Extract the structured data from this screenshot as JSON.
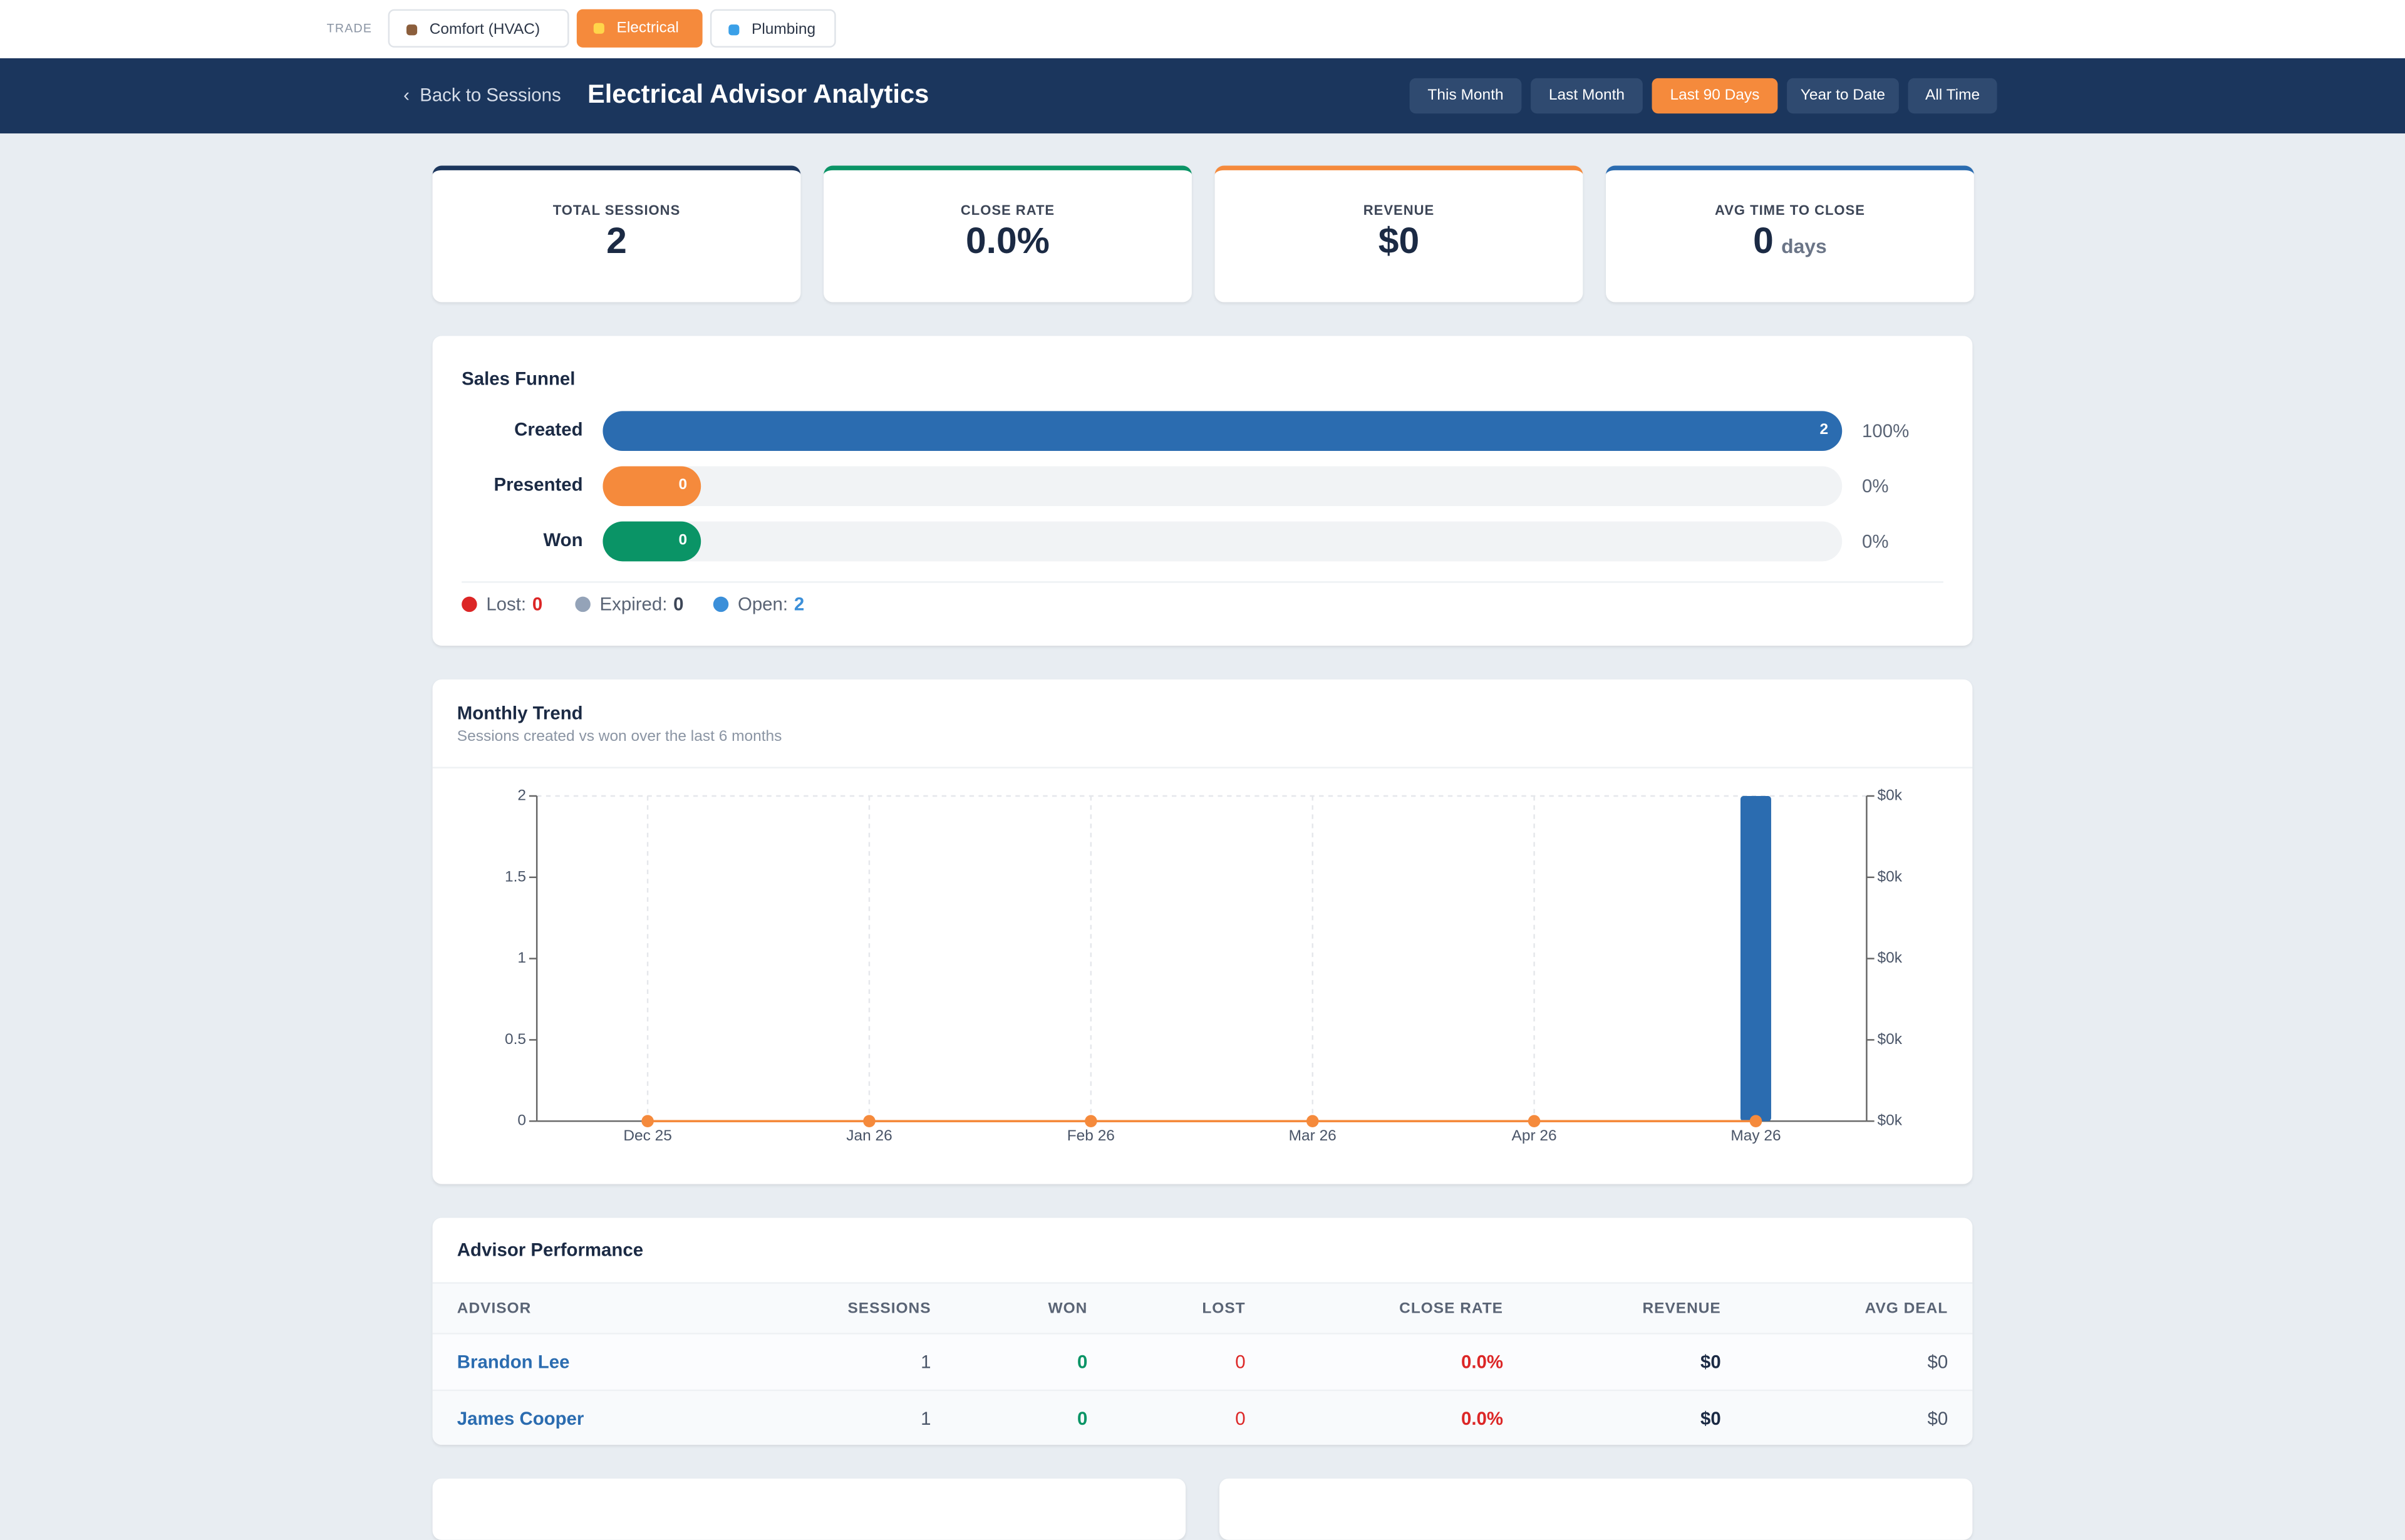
{
  "nav": {
    "trade_label": "TRADE",
    "trades": [
      "Comfort (HVAC)",
      "Electrical",
      "Plumbing"
    ],
    "active_trade": 1
  },
  "header": {
    "back": "Back to Sessions",
    "title": "Electrical Advisor Analytics",
    "ranges": [
      "This Month",
      "Last Month",
      "Last 90 Days",
      "Year to Date",
      "All Time"
    ],
    "active_range": 2
  },
  "kpis": [
    {
      "label": "TOTAL SESSIONS",
      "value": "2",
      "color": "#1b365d"
    },
    {
      "label": "CLOSE RATE",
      "value": "0.0%",
      "color": "#0a9466"
    },
    {
      "label": "REVENUE",
      "value": "$0",
      "color": "#f58a3c"
    },
    {
      "label": "AVG TIME TO CLOSE",
      "value": "0",
      "unit": "days",
      "color": "#2b6cb0"
    }
  ],
  "funnel": {
    "title": "Sales Funnel",
    "stages": [
      {
        "label": "Created",
        "value": 2,
        "pct": "100%",
        "color": "#2b6cb0"
      },
      {
        "label": "Presented",
        "value": 0,
        "pct": "0%",
        "color": "#f58a3c"
      },
      {
        "label": "Won",
        "value": 0,
        "pct": "0%",
        "color": "#0a9466"
      }
    ],
    "summary": [
      {
        "label": "Lost:",
        "value": 0,
        "color": "#dc2626"
      },
      {
        "label": "Expired:",
        "value": 0,
        "color": "#94a3b8"
      },
      {
        "label": "Open:",
        "value": 2,
        "color": "#3b8fd9"
      }
    ]
  },
  "chart_data": {
    "type": "bar",
    "title": "Monthly Trend",
    "subtitle": "Sessions created vs won over the last 6 months",
    "categories": [
      "Dec 25",
      "Jan 26",
      "Feb 26",
      "Mar 26",
      "Apr 26",
      "May 26"
    ],
    "series": [
      {
        "type": "bar",
        "color": "#2b6cb0",
        "values": [
          0,
          0,
          0,
          0,
          0,
          2
        ]
      },
      {
        "type": "line",
        "color": "#f58a3c",
        "values": [
          0,
          0,
          0,
          0,
          0,
          0
        ]
      }
    ],
    "ylim": [
      0,
      2
    ],
    "yticks": [
      0,
      0.5,
      1,
      1.5,
      2
    ],
    "y2lim": [
      0,
      1
    ],
    "y2ticks": [
      {
        "value": 0,
        "label": "$0k"
      },
      {
        "value": 0.25,
        "label": "$0k"
      },
      {
        "value": 0.5,
        "label": "$0k"
      },
      {
        "value": 0.75,
        "label": "$0k"
      },
      {
        "value": 1,
        "label": "$0k"
      }
    ],
    "grid": true
  },
  "table": {
    "title": "Advisor Performance",
    "columns": [
      "ADVISOR",
      "SESSIONS",
      "WON",
      "LOST",
      "CLOSE RATE",
      "REVENUE",
      "AVG DEAL"
    ],
    "rows": [
      [
        "Brandon Lee",
        "1",
        "0",
        "0",
        "0.0%",
        "$0",
        "$0"
      ],
      [
        "James Cooper",
        "1",
        "0",
        "0",
        "0.0%",
        "$0",
        "$0"
      ]
    ]
  }
}
